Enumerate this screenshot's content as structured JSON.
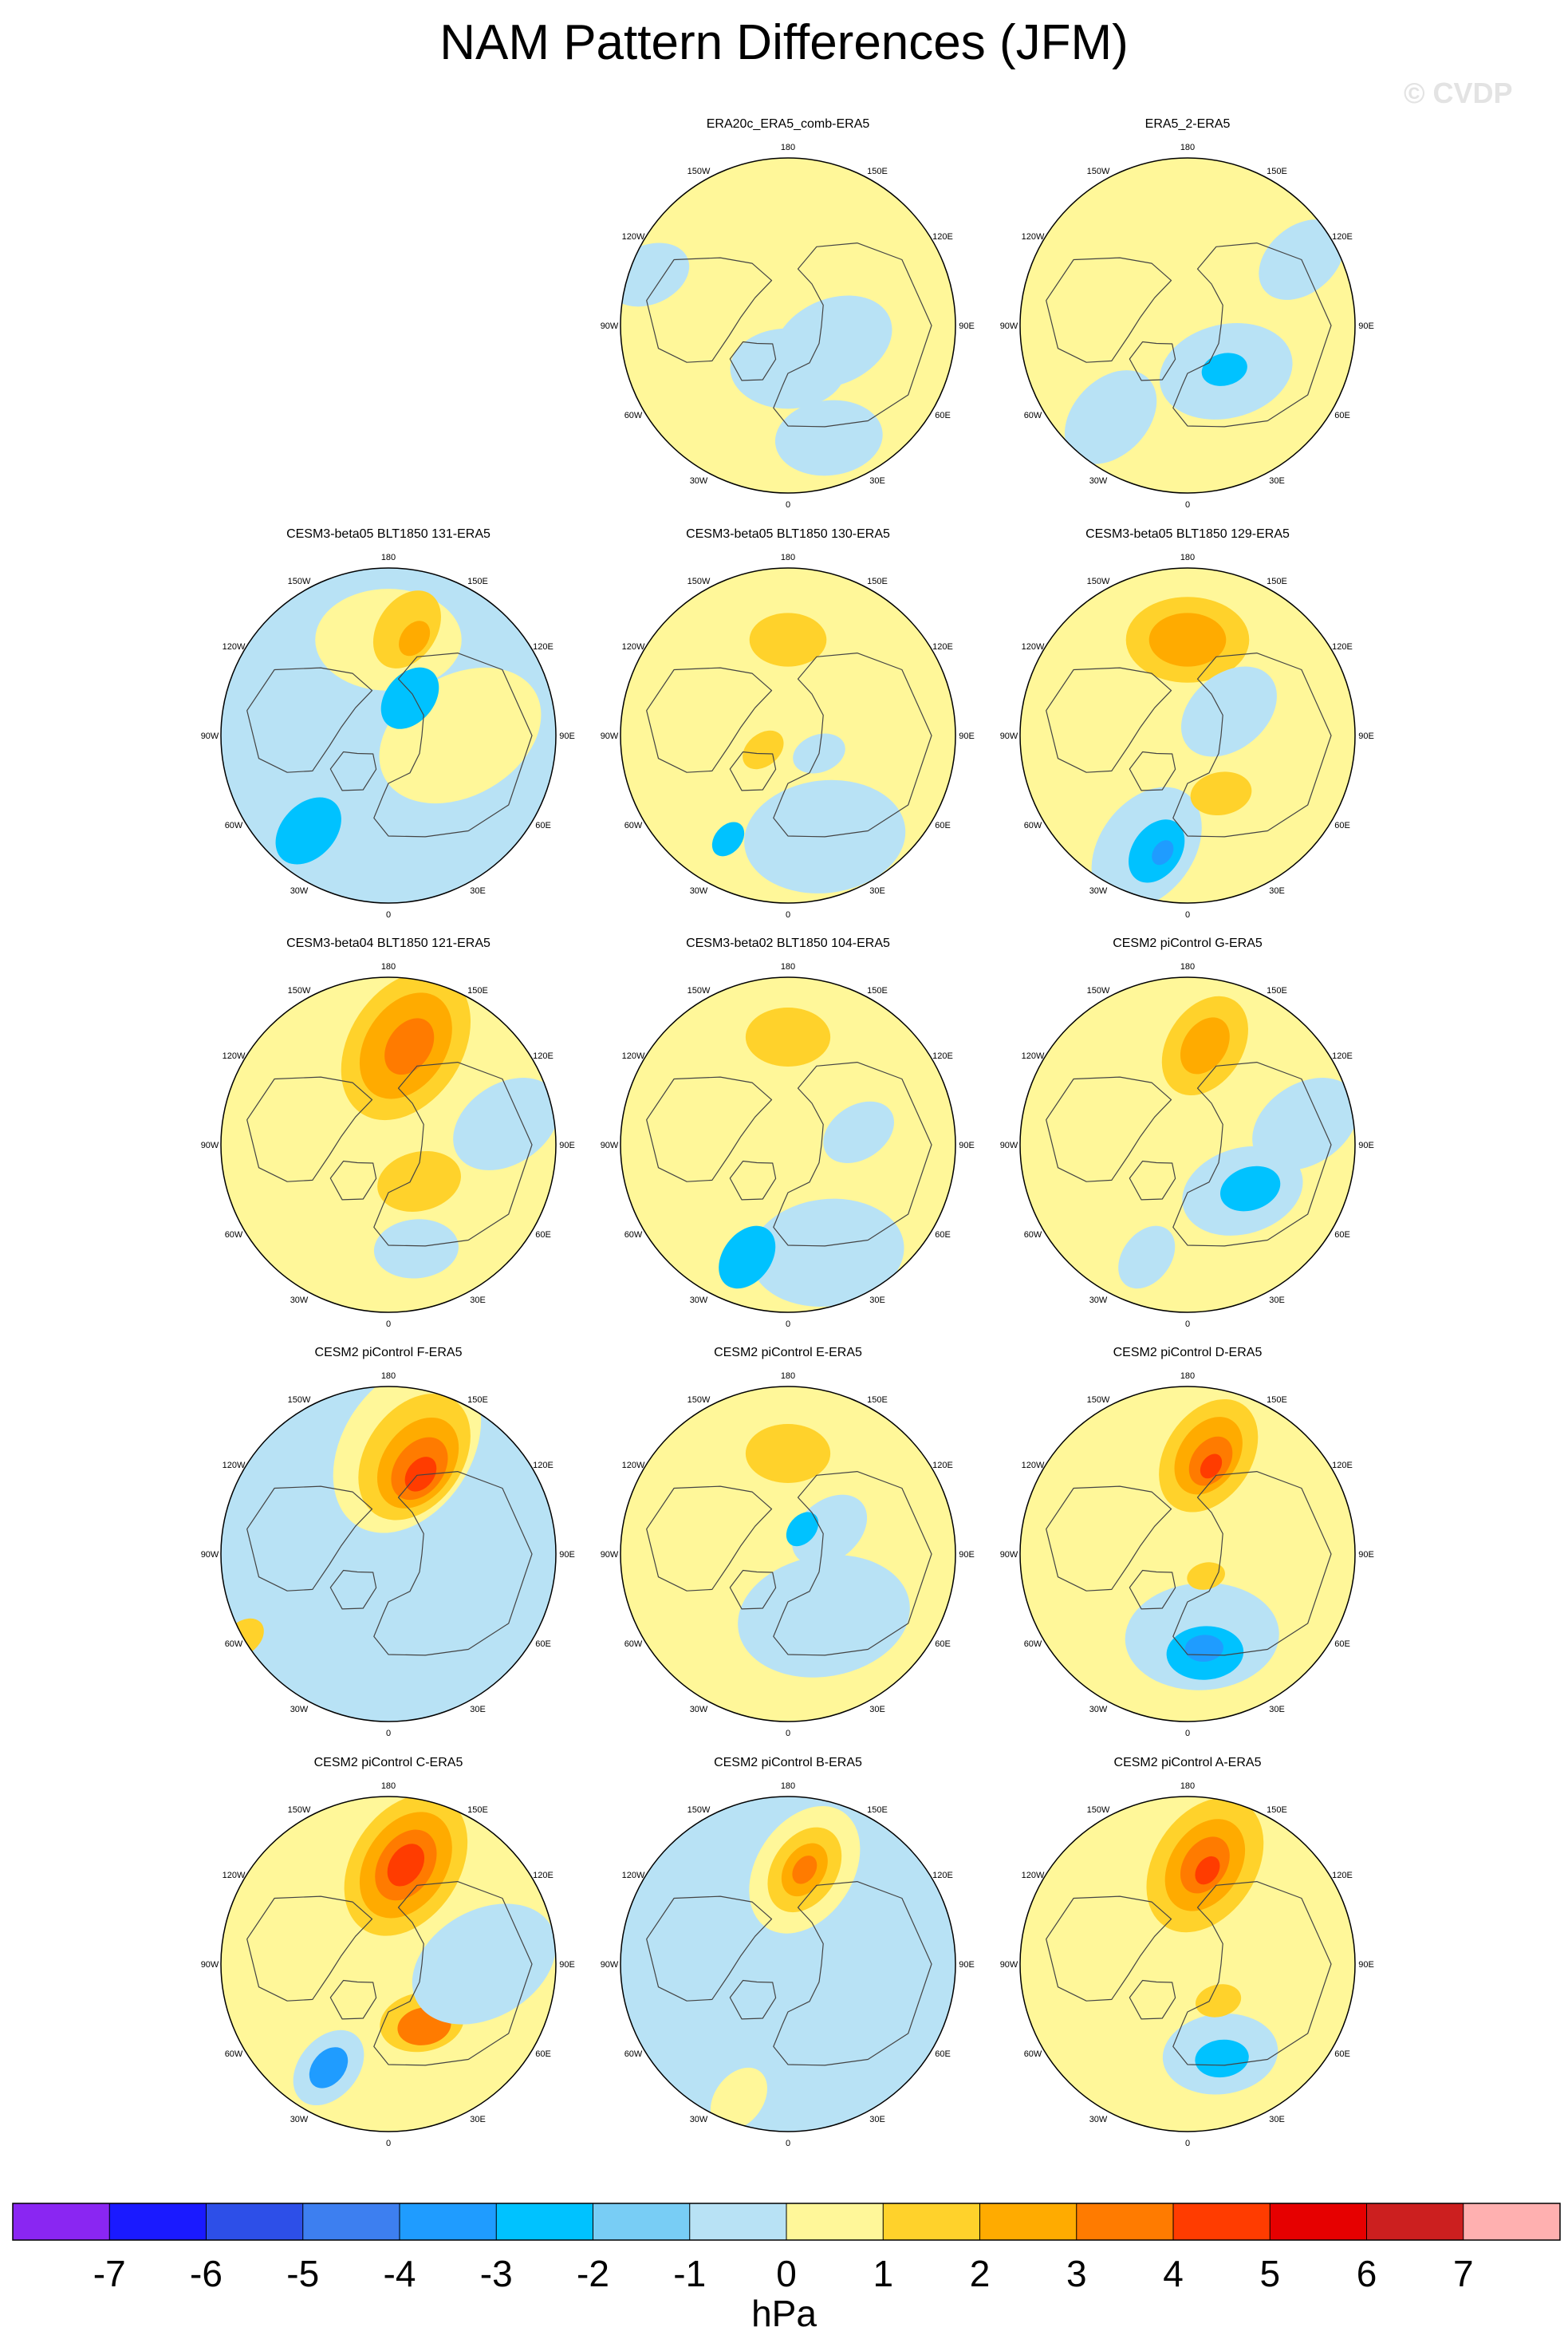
{
  "title": "NAM Pattern Differences (JFM)",
  "watermark": "© CVDP",
  "longitude_labels": [
    "180",
    "150E",
    "120E",
    "90E",
    "60E",
    "30E",
    "0",
    "30W",
    "60W",
    "90W",
    "120W",
    "150W"
  ],
  "panels": [
    {
      "title": "ERA20c_ERA5_comb-ERA5",
      "row": 0,
      "col": 1,
      "base_level": "0",
      "features": [
        {
          "lon": 0,
          "lat": 72,
          "size": 0.3,
          "level": "-1"
        },
        {
          "lon": 70,
          "lat": 70,
          "size": 0.32,
          "level": "-1"
        },
        {
          "lon": 20,
          "lat": 40,
          "size": 0.28,
          "level": "-1"
        },
        {
          "lon": 250,
          "lat": 28,
          "size": 0.22,
          "level": "-1"
        }
      ]
    },
    {
      "title": "ERA5_2-ERA5",
      "row": 0,
      "col": 2,
      "base_level": "0",
      "features": [
        {
          "lon": 40,
          "lat": 65,
          "size": 0.35,
          "level": "-1"
        },
        {
          "lon": 40,
          "lat": 66,
          "size": 0.12,
          "level": "-2"
        },
        {
          "lon": 320,
          "lat": 40,
          "size": 0.28,
          "level": "-1"
        },
        {
          "lon": 120,
          "lat": 35,
          "size": 0.25,
          "level": "-1"
        }
      ]
    },
    {
      "title": "CESM3-beta05 BLT1850 131-ERA5",
      "row": 1,
      "col": 0,
      "base_level": "-1",
      "features": [
        {
          "lon": 180,
          "lat": 50,
          "size": 0.38,
          "level": "0"
        },
        {
          "lon": 170,
          "lat": 45,
          "size": 0.22,
          "level": "1"
        },
        {
          "lon": 165,
          "lat": 48,
          "size": 0.1,
          "level": "2"
        },
        {
          "lon": 90,
          "lat": 60,
          "size": 0.45,
          "level": "0"
        },
        {
          "lon": 150,
          "lat": 72,
          "size": 0.18,
          "level": "-2"
        },
        {
          "lon": 320,
          "lat": 38,
          "size": 0.2,
          "level": "-2"
        }
      ]
    },
    {
      "title": "CESM3-beta05 BLT1850 130-ERA5",
      "row": 1,
      "col": 1,
      "base_level": "0",
      "features": [
        {
          "lon": 180,
          "lat": 50,
          "size": 0.2,
          "level": "1"
        },
        {
          "lon": 300,
          "lat": 78,
          "size": 0.12,
          "level": "1"
        },
        {
          "lon": 20,
          "lat": 45,
          "size": 0.42,
          "level": "-1"
        },
        {
          "lon": 60,
          "lat": 75,
          "size": 0.14,
          "level": "-1"
        },
        {
          "lon": 330,
          "lat": 40,
          "size": 0.1,
          "level": "-2"
        }
      ]
    },
    {
      "title": "CESM3-beta05 BLT1850 129-ERA5",
      "row": 1,
      "col": 2,
      "base_level": "0",
      "features": [
        {
          "lon": 180,
          "lat": 50,
          "size": 0.32,
          "level": "1"
        },
        {
          "lon": 180,
          "lat": 50,
          "size": 0.2,
          "level": "2"
        },
        {
          "lon": 120,
          "lat": 70,
          "size": 0.28,
          "level": "-1"
        },
        {
          "lon": 340,
          "lat": 40,
          "size": 0.35,
          "level": "-1"
        },
        {
          "lon": 345,
          "lat": 40,
          "size": 0.18,
          "level": "-2"
        },
        {
          "lon": 348,
          "lat": 40,
          "size": 0.07,
          "level": "-3"
        },
        {
          "lon": 30,
          "lat": 62,
          "size": 0.16,
          "level": "1"
        }
      ]
    },
    {
      "title": "CESM3-beta04 BLT1850 121-ERA5",
      "row": 2,
      "col": 0,
      "base_level": "0",
      "features": [
        {
          "lon": 170,
          "lat": 48,
          "size": 0.42,
          "level": "1"
        },
        {
          "lon": 170,
          "lat": 48,
          "size": 0.3,
          "level": "2"
        },
        {
          "lon": 168,
          "lat": 48,
          "size": 0.16,
          "level": "3"
        },
        {
          "lon": 40,
          "lat": 70,
          "size": 0.22,
          "level": "1"
        },
        {
          "lon": 15,
          "lat": 45,
          "size": 0.22,
          "level": "-1"
        },
        {
          "lon": 100,
          "lat": 40,
          "size": 0.3,
          "level": "-1"
        }
      ]
    },
    {
      "title": "CESM3-beta02 BLT1850 104-ERA5",
      "row": 2,
      "col": 1,
      "base_level": "0",
      "features": [
        {
          "lon": 180,
          "lat": 45,
          "size": 0.22,
          "level": "1"
        },
        {
          "lon": 20,
          "lat": 42,
          "size": 0.4,
          "level": "-1"
        },
        {
          "lon": 340,
          "lat": 40,
          "size": 0.18,
          "level": "-2"
        },
        {
          "lon": 100,
          "lat": 60,
          "size": 0.2,
          "level": "-1"
        }
      ]
    },
    {
      "title": "CESM2 piControl G-ERA5",
      "row": 2,
      "col": 2,
      "base_level": "0",
      "features": [
        {
          "lon": 170,
          "lat": 48,
          "size": 0.28,
          "level": "1"
        },
        {
          "lon": 170,
          "lat": 48,
          "size": 0.16,
          "level": "2"
        },
        {
          "lon": 50,
          "lat": 60,
          "size": 0.32,
          "level": "-1"
        },
        {
          "lon": 55,
          "lat": 58,
          "size": 0.16,
          "level": "-2"
        },
        {
          "lon": 340,
          "lat": 40,
          "size": 0.18,
          "level": "-1"
        },
        {
          "lon": 100,
          "lat": 40,
          "size": 0.3,
          "level": "-1"
        }
      ]
    },
    {
      "title": "CESM2 piControl F-ERA5",
      "row": 3,
      "col": 0,
      "base_level": "-1",
      "features": [
        {
          "lon": 170,
          "lat": 45,
          "size": 0.48,
          "level": "0"
        },
        {
          "lon": 165,
          "lat": 48,
          "size": 0.36,
          "level": "1"
        },
        {
          "lon": 162,
          "lat": 50,
          "size": 0.26,
          "level": "2"
        },
        {
          "lon": 160,
          "lat": 52,
          "size": 0.18,
          "level": "3"
        },
        {
          "lon": 158,
          "lat": 54,
          "size": 0.1,
          "level": "4"
        },
        {
          "lon": 300,
          "lat": 20,
          "size": 0.12,
          "level": "1"
        }
      ]
    },
    {
      "title": "CESM2 piControl E-ERA5",
      "row": 3,
      "col": 1,
      "base_level": "0",
      "features": [
        {
          "lon": 180,
          "lat": 48,
          "size": 0.22,
          "level": "1"
        },
        {
          "lon": 30,
          "lat": 60,
          "size": 0.45,
          "level": "-1"
        },
        {
          "lon": 120,
          "lat": 70,
          "size": 0.22,
          "level": "-1"
        },
        {
          "lon": 150,
          "lat": 78,
          "size": 0.1,
          "level": "-2"
        }
      ]
    },
    {
      "title": "CESM2 piControl D-ERA5",
      "row": 3,
      "col": 2,
      "base_level": "0",
      "features": [
        {
          "lon": 168,
          "lat": 48,
          "size": 0.32,
          "level": "1"
        },
        {
          "lon": 168,
          "lat": 48,
          "size": 0.22,
          "level": "2"
        },
        {
          "lon": 166,
          "lat": 50,
          "size": 0.14,
          "level": "3"
        },
        {
          "lon": 165,
          "lat": 52,
          "size": 0.07,
          "level": "4"
        },
        {
          "lon": 10,
          "lat": 55,
          "size": 0.4,
          "level": "-1"
        },
        {
          "lon": 10,
          "lat": 48,
          "size": 0.2,
          "level": "-2"
        },
        {
          "lon": 10,
          "lat": 50,
          "size": 0.1,
          "level": "-3"
        },
        {
          "lon": 40,
          "lat": 78,
          "size": 0.1,
          "level": "1"
        }
      ]
    },
    {
      "title": "CESM2 piControl C-ERA5",
      "row": 4,
      "col": 0,
      "base_level": "0",
      "features": [
        {
          "lon": 170,
          "lat": 48,
          "size": 0.4,
          "level": "1"
        },
        {
          "lon": 170,
          "lat": 48,
          "size": 0.3,
          "level": "2"
        },
        {
          "lon": 170,
          "lat": 48,
          "size": 0.2,
          "level": "3"
        },
        {
          "lon": 170,
          "lat": 48,
          "size": 0.12,
          "level": "4"
        },
        {
          "lon": 30,
          "lat": 62,
          "size": 0.22,
          "level": "1"
        },
        {
          "lon": 30,
          "lat": 60,
          "size": 0.14,
          "level": "3"
        },
        {
          "lon": 330,
          "lat": 40,
          "size": 0.22,
          "level": "-1"
        },
        {
          "lon": 330,
          "lat": 40,
          "size": 0.12,
          "level": "-3"
        },
        {
          "lon": 90,
          "lat": 50,
          "size": 0.4,
          "level": "-1"
        }
      ]
    },
    {
      "title": "CESM2 piControl B-ERA5",
      "row": 4,
      "col": 1,
      "base_level": "-1",
      "features": [
        {
          "lon": 170,
          "lat": 50,
          "size": 0.36,
          "level": "0"
        },
        {
          "lon": 170,
          "lat": 50,
          "size": 0.24,
          "level": "1"
        },
        {
          "lon": 170,
          "lat": 50,
          "size": 0.15,
          "level": "2"
        },
        {
          "lon": 170,
          "lat": 50,
          "size": 0.08,
          "level": "3"
        },
        {
          "lon": 340,
          "lat": 30,
          "size": 0.18,
          "level": "0"
        }
      ]
    },
    {
      "title": "CESM2 piControl A-ERA5",
      "row": 4,
      "col": 2,
      "base_level": "0",
      "features": [
        {
          "lon": 170,
          "lat": 48,
          "size": 0.38,
          "level": "1"
        },
        {
          "lon": 170,
          "lat": 48,
          "size": 0.26,
          "level": "2"
        },
        {
          "lon": 170,
          "lat": 48,
          "size": 0.16,
          "level": "3"
        },
        {
          "lon": 168,
          "lat": 50,
          "size": 0.08,
          "level": "4"
        },
        {
          "lon": 20,
          "lat": 50,
          "size": 0.3,
          "level": "-1"
        },
        {
          "lon": 20,
          "lat": 48,
          "size": 0.14,
          "level": "-2"
        },
        {
          "lon": 40,
          "lat": 70,
          "size": 0.12,
          "level": "1"
        }
      ]
    }
  ],
  "colorbar": {
    "units": "hPa",
    "labels": [
      "-7",
      "-6",
      "-5",
      "-4",
      "-3",
      "-2",
      "-1",
      "0",
      "1",
      "2",
      "3",
      "4",
      "5",
      "6",
      "7"
    ],
    "colors": [
      "#8a26f2",
      "#1a1aff",
      "#2d4fe8",
      "#3d7ff0",
      "#1f9cff",
      "#00c2ff",
      "#78cdf5",
      "#b8e2f5",
      "#fff799",
      "#ffd22b",
      "#ffab00",
      "#ff7b00",
      "#ff3c00",
      "#e60000",
      "#cc1f1f",
      "#ffb0b0"
    ],
    "level_index": {
      "-7": 0,
      "-6": 1,
      "-5": 2,
      "-4": 3,
      "-3": 4,
      "-2": 5,
      "-1": 7,
      "0": 8,
      "1": 9,
      "2": 10,
      "3": 11,
      "4": 12,
      "5": 13,
      "6": 14,
      "7": 15
    }
  }
}
